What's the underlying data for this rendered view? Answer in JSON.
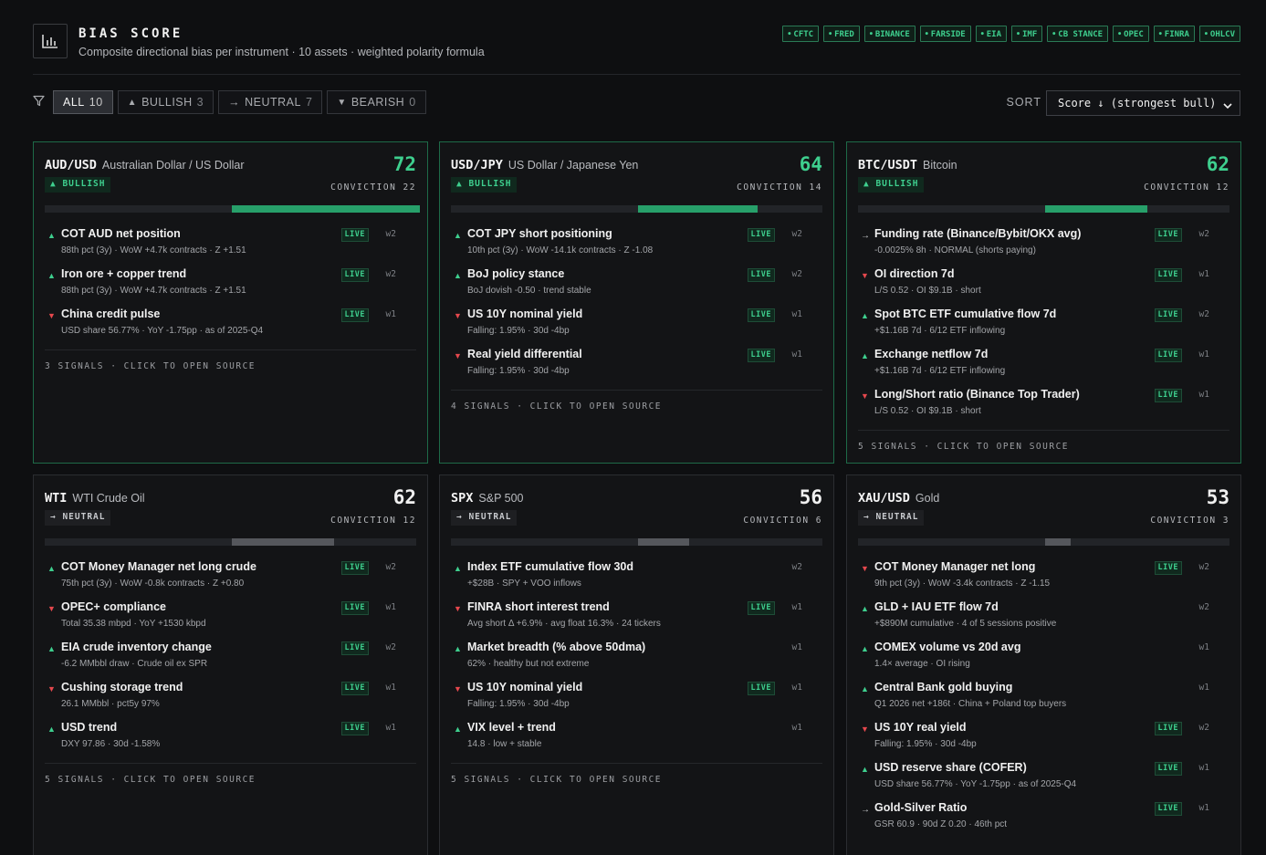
{
  "header": {
    "title": "BIAS SCORE",
    "subtitle": "Composite directional bias per instrument · 10 assets · weighted polarity formula",
    "sources": [
      "CFTC",
      "FRED",
      "BINANCE",
      "FARSIDE",
      "EIA",
      "IMF",
      "CB STANCE",
      "OPEC",
      "FINRA",
      "OHLCV"
    ]
  },
  "filters": [
    {
      "arrow": "",
      "label": "ALL",
      "count": "10"
    },
    {
      "arrow": "▲",
      "label": "BULLISH",
      "count": "3"
    },
    {
      "arrow": "→",
      "label": "NEUTRAL",
      "count": "7"
    },
    {
      "arrow": "▼",
      "label": "BEARISH",
      "count": "0"
    }
  ],
  "sort": {
    "label": "SORT",
    "value": "Score ↓ (strongest bull)"
  },
  "colors": {
    "bull": "#3ecf8e",
    "bear": "#e5484d",
    "neutral": "#c8cacd",
    "background": "#0e0f11"
  },
  "cards": [
    {
      "symbol": "AUD/USD",
      "name": "Australian Dollar / US Dollar",
      "score": "72",
      "bias": "bull",
      "badge": "▲ BULLISH",
      "conviction": "CONVICTION 22",
      "footer": "3 SIGNALS · CLICK TO OPEN SOURCE",
      "signals": [
        {
          "dir": "up",
          "label": "COT AUD net position",
          "sub": "88th pct (3y) · WoW +4.7k contracts · Z +1.51",
          "live": "LIVE",
          "w": "w2"
        },
        {
          "dir": "up",
          "label": "Iron ore + copper trend",
          "sub": "88th pct (3y) · WoW +4.7k contracts · Z +1.51",
          "live": "LIVE",
          "w": "w2"
        },
        {
          "dir": "dn",
          "label": "China credit pulse",
          "sub": "USD share 56.77% · YoY -1.75pp · as of 2025-Q4",
          "live": "LIVE",
          "w": "w1"
        }
      ]
    },
    {
      "symbol": "USD/JPY",
      "name": "US Dollar / Japanese Yen",
      "score": "64",
      "bias": "bull",
      "badge": "▲ BULLISH",
      "conviction": "CONVICTION 14",
      "footer": "4 SIGNALS · CLICK TO OPEN SOURCE",
      "signals": [
        {
          "dir": "up",
          "label": "COT JPY short positioning",
          "sub": "10th pct (3y) · WoW -14.1k contracts · Z -1.08",
          "live": "LIVE",
          "w": "w2"
        },
        {
          "dir": "up",
          "label": "BoJ policy stance",
          "sub": "BoJ dovish -0.50 · trend stable",
          "live": "LIVE",
          "w": "w2"
        },
        {
          "dir": "dn",
          "label": "US 10Y nominal yield",
          "sub": "Falling: 1.95% · 30d -4bp",
          "live": "LIVE",
          "w": "w1"
        },
        {
          "dir": "dn",
          "label": "Real yield differential",
          "sub": "Falling: 1.95% · 30d -4bp",
          "live": "LIVE",
          "w": "w1"
        }
      ]
    },
    {
      "symbol": "BTC/USDT",
      "name": "Bitcoin",
      "score": "62",
      "bias": "bull",
      "badge": "▲ BULLISH",
      "conviction": "CONVICTION 12",
      "footer": "5 SIGNALS · CLICK TO OPEN SOURCE",
      "signals": [
        {
          "dir": "nt",
          "label": "Funding rate (Binance/Bybit/OKX avg)",
          "sub": "-0.0025% 8h · NORMAL (shorts paying)",
          "live": "LIVE",
          "w": "w2"
        },
        {
          "dir": "dn",
          "label": "OI direction 7d",
          "sub": "L/S 0.52 · OI $9.1B · short",
          "live": "LIVE",
          "w": "w1"
        },
        {
          "dir": "up",
          "label": "Spot BTC ETF cumulative flow 7d",
          "sub": "+$1.16B 7d · 6/12 ETF inflowing",
          "live": "LIVE",
          "w": "w2"
        },
        {
          "dir": "up",
          "label": "Exchange netflow 7d",
          "sub": "+$1.16B 7d · 6/12 ETF inflowing",
          "live": "LIVE",
          "w": "w1"
        },
        {
          "dir": "dn",
          "label": "Long/Short ratio (Binance Top Trader)",
          "sub": "L/S 0.52 · OI $9.1B · short",
          "live": "LIVE",
          "w": "w1"
        }
      ]
    },
    {
      "symbol": "WTI",
      "name": "WTI Crude Oil",
      "score": "62",
      "bias": "neut",
      "badge": "→ NEUTRAL",
      "conviction": "CONVICTION 12",
      "footer": "5 SIGNALS · CLICK TO OPEN SOURCE",
      "signals": [
        {
          "dir": "up",
          "label": "COT Money Manager net long crude",
          "sub": "75th pct (3y) · WoW -0.8k contracts · Z +0.80",
          "live": "LIVE",
          "w": "w2"
        },
        {
          "dir": "dn",
          "label": "OPEC+ compliance",
          "sub": "Total 35.38 mbpd · YoY +1530 kbpd",
          "live": "LIVE",
          "w": "w1"
        },
        {
          "dir": "up",
          "label": "EIA crude inventory change",
          "sub": "-6.2 MMbbl draw · Crude oil ex SPR",
          "live": "LIVE",
          "w": "w2"
        },
        {
          "dir": "dn",
          "label": "Cushing storage trend",
          "sub": "26.1 MMbbl · pct5y 97%",
          "live": "LIVE",
          "w": "w1"
        },
        {
          "dir": "up",
          "label": "USD trend",
          "sub": "DXY 97.86 · 30d -1.58%",
          "live": "LIVE",
          "w": "w1"
        }
      ]
    },
    {
      "symbol": "SPX",
      "name": "S&P 500",
      "score": "56",
      "bias": "neut",
      "badge": "→ NEUTRAL",
      "conviction": "CONVICTION 6",
      "footer": "5 SIGNALS · CLICK TO OPEN SOURCE",
      "signals": [
        {
          "dir": "up",
          "label": "Index ETF cumulative flow 30d",
          "sub": "+$28B · SPY + VOO inflows",
          "live": "",
          "w": "w2"
        },
        {
          "dir": "dn",
          "label": "FINRA short interest trend",
          "sub": "Avg short Δ +6.9% · avg float 16.3% · 24 tickers",
          "live": "LIVE",
          "w": "w1"
        },
        {
          "dir": "up",
          "label": "Market breadth (% above 50dma)",
          "sub": "62% · healthy but not extreme",
          "live": "",
          "w": "w1"
        },
        {
          "dir": "dn",
          "label": "US 10Y nominal yield",
          "sub": "Falling: 1.95% · 30d -4bp",
          "live": "LIVE",
          "w": "w1"
        },
        {
          "dir": "up",
          "label": "VIX level + trend",
          "sub": "14.8 · low + stable",
          "live": "",
          "w": "w1"
        }
      ]
    },
    {
      "symbol": "XAU/USD",
      "name": "Gold",
      "score": "53",
      "bias": "neut",
      "badge": "→ NEUTRAL",
      "conviction": "CONVICTION 3",
      "footer": "",
      "signals": [
        {
          "dir": "dn",
          "label": "COT Money Manager net long",
          "sub": "9th pct (3y) · WoW -3.4k contracts · Z -1.15",
          "live": "LIVE",
          "w": "w2"
        },
        {
          "dir": "up",
          "label": "GLD + IAU ETF flow 7d",
          "sub": "+$890M cumulative · 4 of 5 sessions positive",
          "live": "",
          "w": "w2"
        },
        {
          "dir": "up",
          "label": "COMEX volume vs 20d avg",
          "sub": "1.4× average · OI rising",
          "live": "",
          "w": "w1"
        },
        {
          "dir": "up",
          "label": "Central Bank gold buying",
          "sub": "Q1 2026 net +186t · China + Poland top buyers",
          "live": "",
          "w": "w1"
        },
        {
          "dir": "dn",
          "label": "US 10Y real yield",
          "sub": "Falling: 1.95% · 30d -4bp",
          "live": "LIVE",
          "w": "w2"
        },
        {
          "dir": "up",
          "label": "USD reserve share (COFER)",
          "sub": "USD share 56.77% · YoY -1.75pp · as of 2025-Q4",
          "live": "LIVE",
          "w": "w1"
        },
        {
          "dir": "nt",
          "label": "Gold-Silver Ratio",
          "sub": "GSR 60.9 · 90d Z 0.20 · 46th pct",
          "live": "LIVE",
          "w": "w1"
        }
      ]
    }
  ]
}
